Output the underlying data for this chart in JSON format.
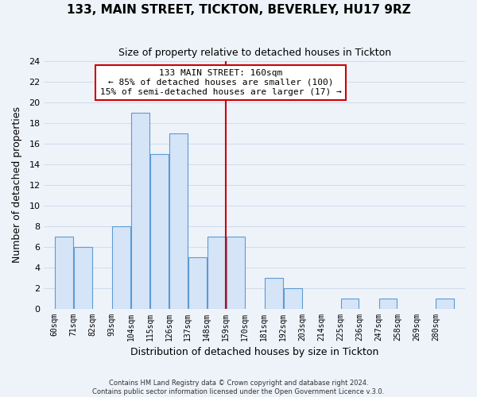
{
  "title": "133, MAIN STREET, TICKTON, BEVERLEY, HU17 9RZ",
  "subtitle": "Size of property relative to detached houses in Tickton",
  "xlabel": "Distribution of detached houses by size in Tickton",
  "ylabel": "Number of detached properties",
  "bin_labels": [
    "60sqm",
    "71sqm",
    "82sqm",
    "93sqm",
    "104sqm",
    "115sqm",
    "126sqm",
    "137sqm",
    "148sqm",
    "159sqm",
    "170sqm",
    "181sqm",
    "192sqm",
    "203sqm",
    "214sqm",
    "225sqm",
    "236sqm",
    "247sqm",
    "258sqm",
    "269sqm",
    "280sqm"
  ],
  "bin_edges": [
    60,
    71,
    82,
    93,
    104,
    115,
    126,
    137,
    148,
    159,
    170,
    181,
    192,
    203,
    214,
    225,
    236,
    247,
    258,
    269,
    280
  ],
  "counts": [
    7,
    6,
    0,
    8,
    19,
    15,
    17,
    5,
    7,
    7,
    0,
    3,
    2,
    0,
    0,
    1,
    0,
    1,
    0,
    0,
    1
  ],
  "bar_facecolor": "#d6e4f7",
  "bar_edgecolor": "#5b9bd5",
  "vline_x": 159,
  "vline_color": "#cc0000",
  "annotation_title": "133 MAIN STREET: 160sqm",
  "annotation_line1": "← 85% of detached houses are smaller (100)",
  "annotation_line2": "15% of semi-detached houses are larger (17) →",
  "annotation_box_edgecolor": "#cc0000",
  "annotation_box_facecolor": "#ffffff",
  "ylim": [
    0,
    24
  ],
  "yticks": [
    0,
    2,
    4,
    6,
    8,
    10,
    12,
    14,
    16,
    18,
    20,
    22,
    24
  ],
  "footer1": "Contains HM Land Registry data © Crown copyright and database right 2024.",
  "footer2": "Contains public sector information licensed under the Open Government Licence v.3.0.",
  "grid_color": "#d0dcea",
  "background_color": "#eef3fa"
}
